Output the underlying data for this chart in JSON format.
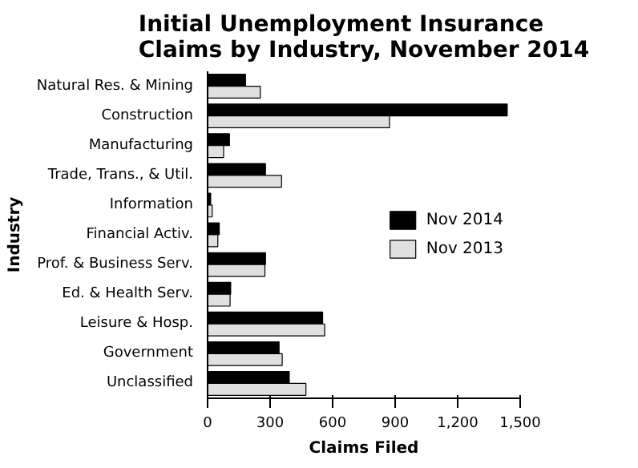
{
  "chart_data": {
    "type": "bar",
    "orientation": "horizontal",
    "title": "Initial Unemployment Insurance\nClaims by Industry, November 2014",
    "xlabel": "Claims Filed",
    "ylabel": "Industry",
    "categories": [
      "Natural Res. & Mining",
      "Construction",
      "Manufacturing",
      "Trade, Trans., & Util.",
      "Information",
      "Financial Activ.",
      "Prof. & Business Serv.",
      "Ed. & Health Serv.",
      "Leisure & Hosp.",
      "Government",
      "Unclassified"
    ],
    "series": [
      {
        "name": "Nov 2014",
        "color": "#000000",
        "values": [
          182,
          1438,
          105,
          278,
          15,
          56,
          278,
          111,
          552,
          343,
          392
        ]
      },
      {
        "name": "Nov 2013",
        "color": "#e0e0e0",
        "values": [
          253,
          873,
          77,
          355,
          22,
          49,
          275,
          108,
          562,
          358,
          472
        ]
      }
    ],
    "xlim": [
      0,
      1500
    ],
    "xticks": [
      0,
      300,
      600,
      900,
      {
        "value": 1200,
        "label": "1,200"
      },
      {
        "value": 1500,
        "label": "1,500"
      }
    ],
    "grid": false,
    "legend": "right"
  }
}
